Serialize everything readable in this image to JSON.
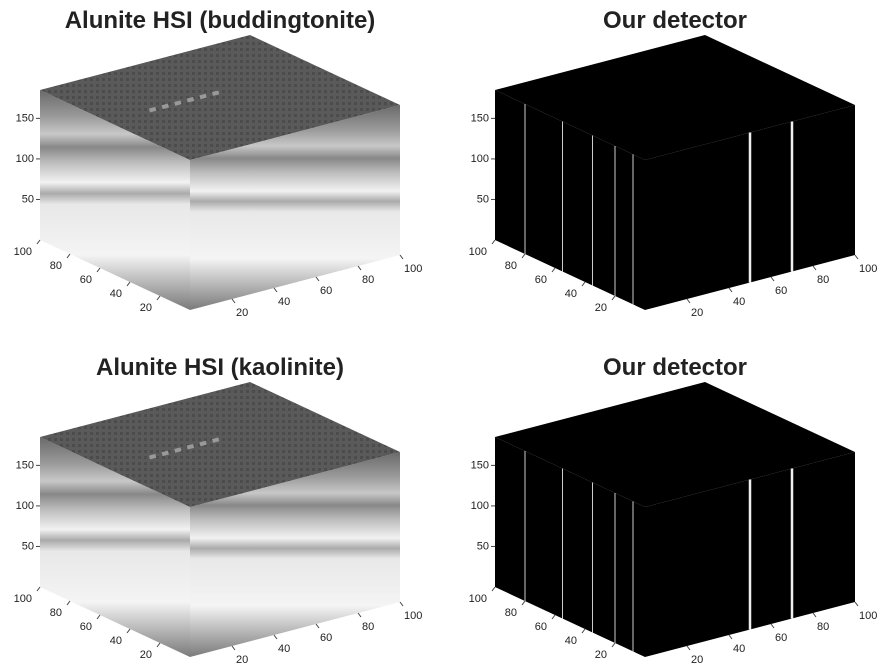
{
  "chart_data": [
    {
      "type": "cube3d",
      "title": "Alunite HSI (buddingtonite)",
      "style": "gray",
      "xlim": [
        0,
        100
      ],
      "xticks": [
        20,
        40,
        60,
        80,
        100
      ],
      "ylim": [
        0,
        100
      ],
      "yticks": [
        20,
        40,
        60,
        80,
        100
      ],
      "zlim": [
        0,
        185
      ],
      "zticks": [
        50,
        100,
        150
      ]
    },
    {
      "type": "cube3d",
      "title": "Our detector",
      "style": "black",
      "xlim": [
        0,
        100
      ],
      "xticks": [
        20,
        40,
        60,
        80,
        100
      ],
      "ylim": [
        0,
        100
      ],
      "yticks": [
        20,
        40,
        60,
        80,
        100
      ],
      "zlim": [
        0,
        185
      ],
      "zticks": [
        50,
        100,
        150
      ]
    },
    {
      "type": "cube3d",
      "title": "Alunite HSI (kaolinite)",
      "style": "gray",
      "xlim": [
        0,
        100
      ],
      "xticks": [
        20,
        40,
        60,
        80,
        100
      ],
      "ylim": [
        0,
        100
      ],
      "yticks": [
        20,
        40,
        60,
        80,
        100
      ],
      "zlim": [
        0,
        185
      ],
      "zticks": [
        50,
        100,
        150
      ]
    },
    {
      "type": "cube3d",
      "title": "Our detector",
      "style": "black",
      "xlim": [
        0,
        100
      ],
      "xticks": [
        20,
        40,
        60,
        80,
        100
      ],
      "ylim": [
        0,
        100
      ],
      "yticks": [
        20,
        40,
        60,
        80,
        100
      ],
      "zlim": [
        0,
        185
      ],
      "zticks": [
        50,
        100,
        150
      ]
    }
  ]
}
